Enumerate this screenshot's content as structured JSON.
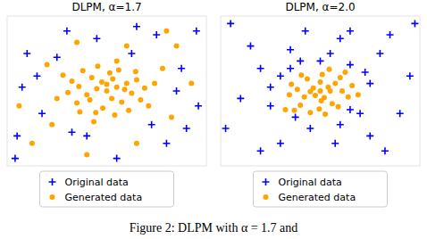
{
  "chart_data": [
    {
      "type": "scatter",
      "title": "DLPM, α=1.7",
      "tick_labels": false,
      "legend": "bottom",
      "xlim": [
        -10,
        10
      ],
      "ylim": [
        -10,
        10
      ],
      "series": [
        {
          "name": "Original data",
          "color": "#0000ff",
          "marker": "plus",
          "x": [
            -8,
            -6.5,
            -9,
            7.5,
            8,
            5,
            -4,
            3,
            -2,
            6,
            -7,
            9,
            -9.2,
            4.5,
            -3.5,
            2.5,
            -5,
            7,
            -8.5,
            1,
            -1,
            9.2
          ],
          "values": [
            5,
            -3,
            -6,
            3,
            -5,
            7.5,
            8,
            8.6,
            -6,
            -7,
            2,
            8,
            -9,
            -4.5,
            -5.5,
            5,
            4.5,
            0,
            0.5,
            -9,
            7,
            -2
          ]
        },
        {
          "name": "Generated data",
          "color": "#ffa500",
          "marker": "circle",
          "x": [
            0,
            1,
            -1,
            0.5,
            -0.5,
            2,
            -2,
            1.5,
            -1.5,
            2.5,
            -2.8,
            0.3,
            -0.4,
            3,
            -3,
            1.2,
            -1.1,
            3.4,
            -3.5,
            2.2,
            -2.4,
            0.8,
            -0.9,
            3.8,
            -3.9,
            2.9,
            -2.7,
            4.2,
            -4.4,
            1,
            -1.3,
            4.8,
            -5,
            5.6,
            -6,
            -5.5,
            6.5,
            2,
            -3,
            7,
            -7.5,
            3,
            8.5,
            -8.8,
            6,
            -2,
            0,
            1.8,
            -1.7,
            0.6
          ],
          "values": [
            0,
            0.5,
            0.3,
            -1,
            1.2,
            1,
            -0.5,
            -1.5,
            1.8,
            -0.3,
            0.6,
            2.4,
            -2.3,
            1.5,
            -1.6,
            2.8,
            -2.9,
            -1.2,
            1.3,
            -2.6,
            2.7,
            -3.2,
            3.3,
            0.4,
            -0.2,
            2.6,
            -2.8,
            -2,
            2.1,
            4,
            -4.1,
            1,
            -1,
            3,
            3.5,
            -4.5,
            -3.5,
            6,
            6.5,
            6,
            -7,
            -7,
            1,
            -2,
            8,
            -8.5,
            0.9,
            0.2,
            -1.2,
            1.6
          ]
        }
      ]
    },
    {
      "type": "scatter",
      "title": "DLPM, α=2.0",
      "tick_labels": false,
      "legend": "bottom",
      "xlim": [
        -10,
        10
      ],
      "ylim": [
        -10,
        10
      ],
      "series": [
        {
          "name": "Original data",
          "color": "#0000ff",
          "marker": "plus",
          "x": [
            -2,
            1,
            -3,
            3,
            -4,
            4,
            -5,
            2,
            -1,
            5,
            -6,
            6,
            -8,
            8,
            3,
            -4,
            7,
            -7,
            1.5,
            9,
            -9.5,
            5,
            -3,
            3,
            -2.5,
            0,
            4.5,
            -5,
            2,
            -1.5,
            9.5,
            -9,
            6.5,
            -6
          ],
          "values": [
            4,
            5,
            5.5,
            3.5,
            2,
            -3,
            -2,
            -4.5,
            -5,
            1,
            3,
            5,
            -1,
            -3,
            8,
            -7,
            7.5,
            6,
            -7,
            2,
            -5,
            -6,
            3,
            -2.5,
            -3.5,
            4,
            2.5,
            0.5,
            7,
            8,
            9,
            9,
            -8,
            -8
          ]
        },
        {
          "name": "Generated data",
          "color": "#ffa500",
          "marker": "circle",
          "x": [
            0,
            0.8,
            -0.7,
            0.4,
            -0.5,
            1.5,
            -1.6,
            1.2,
            -1.3,
            2.2,
            -2.3,
            0.2,
            -0.1,
            2,
            -2,
            1.8,
            -1.9,
            2.8,
            -2.9,
            0.9,
            -1,
            3.2,
            -3.1,
            0.5,
            -3.5,
            1,
            -1,
            0,
            0.1,
            2.5,
            -2.6,
            3.8
          ],
          "values": [
            0,
            0.5,
            0.4,
            -0.9,
            -0.6,
            1,
            -0.8,
            -1.7,
            1.6,
            0,
            0.2,
            2.2,
            -2.4,
            1.8,
            -1.9,
            -2.1,
            2.1,
            -0.8,
            0.9,
            2.9,
            -2.9,
            0.7,
            -0.5,
            -3.1,
            -2.5,
            0,
            -0.1,
            1.2,
            -1.3,
            2.5,
            -2.6,
            -0.5
          ]
        }
      ]
    }
  ],
  "caption": "Figure 2: DLPM with α = 1.7 and"
}
